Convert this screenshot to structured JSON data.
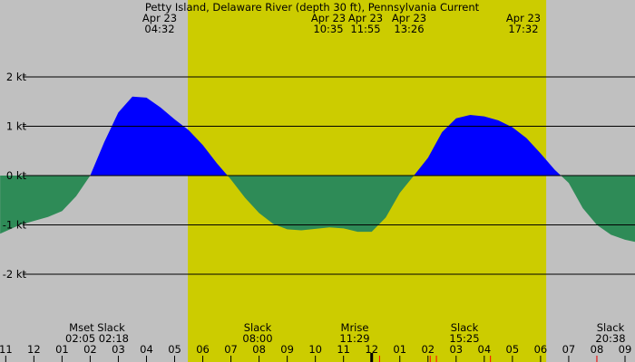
{
  "chart_data": {
    "type": "area",
    "title": "Petty Island, Delaware River (depth 30 ft), Pennsylvania Current",
    "xlabel": "",
    "ylabel": "",
    "x_range_hours": [
      10.8,
      33.4
    ],
    "ylim": [
      -3.2,
      3.2
    ],
    "y_ticks": [
      {
        "value": 2,
        "label": "2 kt"
      },
      {
        "value": 1,
        "label": "1 kt"
      },
      {
        "value": 0,
        "label": "0 kt"
      },
      {
        "value": -1,
        "label": "-1 kt"
      },
      {
        "value": -2,
        "label": "-2 kt"
      }
    ],
    "daylight_hours": [
      17.47,
      30.2
    ],
    "colors": {
      "background": "#c0c0c0",
      "daylight": "#cccc00",
      "flood": "#0000ff",
      "ebb": "#2e8b57",
      "grid": "#000000",
      "tick_red": "#ff0000"
    },
    "series": [
      {
        "x": [
          10.8,
          11.5,
          12.0,
          12.5,
          13.0,
          13.5,
          14.0,
          14.5,
          15.0,
          15.5,
          16.0,
          16.5,
          17.0,
          17.5,
          18.0,
          18.5,
          19.0,
          19.5,
          20.0,
          20.5,
          21.0,
          21.5,
          22.0,
          22.5,
          23.0,
          23.5,
          24.0,
          24.5,
          25.0,
          25.5,
          26.0,
          26.5,
          27.0,
          27.5,
          28.0,
          28.5,
          29.0,
          29.5,
          30.0,
          30.5,
          31.0,
          31.5,
          32.0,
          32.5,
          33.0,
          33.4
        ],
        "values": [
          -1.18,
          -1.0,
          -0.92,
          -0.84,
          -0.72,
          -0.42,
          0.0,
          0.68,
          1.28,
          1.6,
          1.58,
          1.38,
          1.14,
          0.92,
          0.62,
          0.25,
          -0.08,
          -0.45,
          -0.76,
          -0.98,
          -1.09,
          -1.11,
          -1.08,
          -1.05,
          -1.07,
          -1.14,
          -1.14,
          -0.85,
          -0.35,
          0.0,
          0.36,
          0.88,
          1.16,
          1.23,
          1.2,
          1.12,
          0.98,
          0.76,
          0.45,
          0.12,
          -0.15,
          -0.66,
          -1.0,
          -1.2,
          -1.3,
          -1.35
        ]
      }
    ],
    "top_events": [
      {
        "date": "Apr 23",
        "time": "04:32",
        "hour": 28.53
      },
      {
        "date": "Apr 23",
        "time": "10:35",
        "hour": 34.58
      },
      {
        "date": "Apr 23",
        "time": "11:55",
        "hour": 35.92
      },
      {
        "date": "Apr 23",
        "time": "13:26",
        "hour": 37.43
      },
      {
        "date": "Apr 23",
        "time": "17:32",
        "hour": 41.53
      }
    ],
    "bottom_events": [
      {
        "label": "Mset Slack",
        "time": "02:05 02:18",
        "hour": 26.2
      },
      {
        "label": "Slack",
        "time": "08:00",
        "hour": 32.0
      },
      {
        "label": "Mrise",
        "time": "11:29",
        "hour": 35.48
      },
      {
        "label": "Slack",
        "time": "15:25",
        "hour": 39.42
      },
      {
        "label": "Slack",
        "time": "20:38",
        "hour": 44.63
      }
    ],
    "hour_ticks": [
      "11",
      "12",
      "01",
      "02",
      "03",
      "04",
      "05",
      "06",
      "07",
      "08",
      "09",
      "10",
      "11",
      "12",
      "01",
      "02",
      "03",
      "04",
      "05",
      "06",
      "07",
      "08",
      "09"
    ],
    "hour_tick_start": 11
  }
}
